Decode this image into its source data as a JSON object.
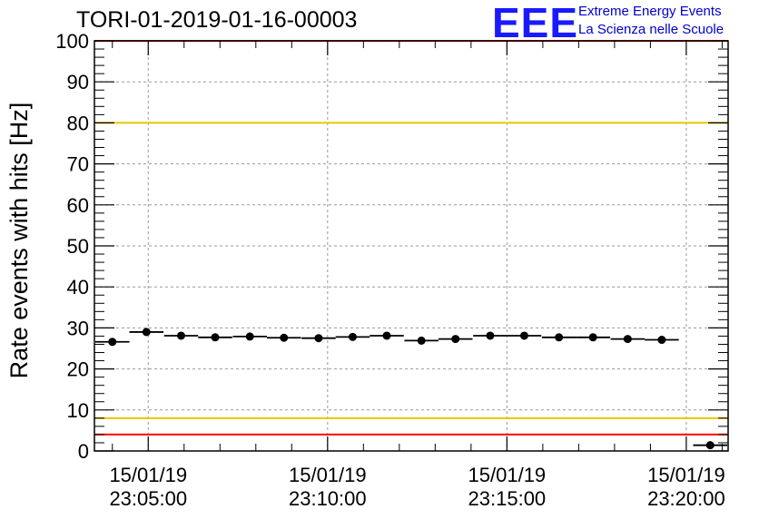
{
  "chart_data": {
    "type": "scatter",
    "title": "TORI-01-2019-01-16-00003",
    "xlabel": "",
    "ylabel": "Rate events with hits [Hz]",
    "ylim": [
      0,
      100
    ],
    "xlim": [
      "15/01/19 23:03:30",
      "15/01/19 23:21:10"
    ],
    "x_ticks": [
      {
        "date": "15/01/19",
        "time": "23:05:00"
      },
      {
        "date": "15/01/19",
        "time": "23:10:00"
      },
      {
        "date": "15/01/19",
        "time": "23:15:00"
      },
      {
        "date": "15/01/19",
        "time": "23:20:00"
      }
    ],
    "y_ticks": [
      "0",
      "10",
      "20",
      "30",
      "40",
      "50",
      "60",
      "70",
      "80",
      "90",
      "100"
    ],
    "grid": true,
    "reference_lines": [
      {
        "y": 100,
        "color": "#ff0000"
      },
      {
        "y": 80,
        "color": "#e8c800"
      },
      {
        "y": 8,
        "color": "#e8c800"
      },
      {
        "y": 4,
        "color": "#ff0000"
      }
    ],
    "series": [
      {
        "points": [
          {
            "x": "15/01/19 23:04:00",
            "y": 26.6
          },
          {
            "x": "15/01/19 23:04:57",
            "y": 29.0
          },
          {
            "x": "15/01/19 23:05:55",
            "y": 28.1
          },
          {
            "x": "15/01/19 23:06:52",
            "y": 27.7
          },
          {
            "x": "15/01/19 23:07:50",
            "y": 27.9
          },
          {
            "x": "15/01/19 23:08:47",
            "y": 27.6
          },
          {
            "x": "15/01/19 23:09:45",
            "y": 27.5
          },
          {
            "x": "15/01/19 23:10:42",
            "y": 27.8
          },
          {
            "x": "15/01/19 23:11:39",
            "y": 28.1
          },
          {
            "x": "15/01/19 23:12:37",
            "y": 26.9
          },
          {
            "x": "15/01/19 23:13:34",
            "y": 27.3
          },
          {
            "x": "15/01/19 23:14:32",
            "y": 28.1
          },
          {
            "x": "15/01/19 23:15:29",
            "y": 28.1
          },
          {
            "x": "15/01/19 23:16:27",
            "y": 27.7
          },
          {
            "x": "15/01/19 23:17:24",
            "y": 27.7
          },
          {
            "x": "15/01/19 23:18:22",
            "y": 27.3
          },
          {
            "x": "15/01/19 23:19:19",
            "y": 27.1
          },
          {
            "x": "15/01/19 23:20:40",
            "y": 1.4
          }
        ]
      }
    ]
  },
  "logo": {
    "text": "EEE",
    "line1": "Extreme Energy Events",
    "line2": "La Scienza nelle Scuole",
    "color": "#1a1aff"
  }
}
